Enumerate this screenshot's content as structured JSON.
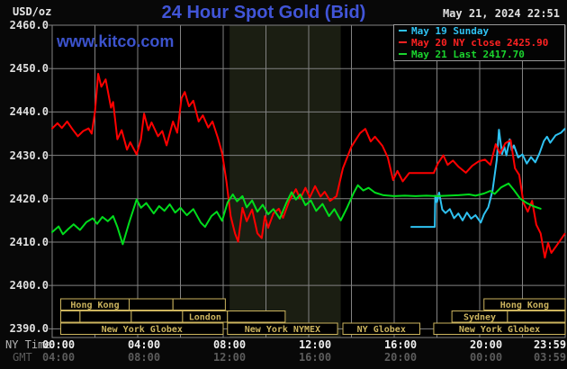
{
  "header": {
    "unit_label": "USD/oz",
    "title": "24 Hour Spot Gold (Bid)",
    "datetime": "May 21, 2024 22:51",
    "watermark": "www.kitco.com"
  },
  "legend": {
    "items": [
      {
        "label": "May 19 Sunday",
        "color": "#2fc2f2"
      },
      {
        "label": "May 20 NY close 2425.90",
        "color": "#ff2222"
      },
      {
        "label": "May 21 Last 2417.70",
        "color": "#1bd42e"
      }
    ]
  },
  "axes": {
    "y_ticks": [
      "2460.0",
      "2450.0",
      "2440.0",
      "2430.0",
      "2420.0",
      "2410.0",
      "2400.0",
      "2390.0"
    ],
    "ny_label": "NY Time",
    "gmt_label": "GMT",
    "ny_ticks": [
      "00:00",
      "04:00",
      "08:00",
      "12:00",
      "16:00",
      "20:00",
      "23:59"
    ],
    "gmt_ticks": [
      "04:00",
      "08:00",
      "12:00",
      "16:00",
      "20:00",
      "00:00",
      "03:59"
    ]
  },
  "sessions": {
    "rows": [
      [
        {
          "label": "Hong Kong",
          "start": 0.4,
          "end": 3.6
        },
        {
          "label": "",
          "start": 3.6,
          "end": 5.65
        },
        {
          "label": "",
          "start": 5.65,
          "end": 8.1
        },
        {
          "label": "Hong Kong",
          "start": 20.2,
          "end": 24.0
        }
      ],
      [
        {
          "label": "",
          "start": 0.4,
          "end": 1.3
        },
        {
          "label": "",
          "start": 1.3,
          "end": 3.7
        },
        {
          "label": "",
          "start": 3.7,
          "end": 6.1
        },
        {
          "label": "London",
          "start": 6.1,
          "end": 8.2
        },
        {
          "label": "",
          "start": 8.2,
          "end": 10.9
        },
        {
          "label": "Sydney",
          "start": 18.7,
          "end": 21.3
        },
        {
          "label": "",
          "start": 21.3,
          "end": 24.0
        }
      ],
      [
        {
          "label": "New York Globex",
          "start": 0.4,
          "end": 8.0
        },
        {
          "label": "New York NYMEX",
          "start": 8.2,
          "end": 13.35
        },
        {
          "label": "NY Globex",
          "start": 13.6,
          "end": 17.2
        },
        {
          "label": "New York Globex",
          "start": 17.85,
          "end": 24.0
        }
      ]
    ]
  },
  "chart_data": {
    "type": "line",
    "title": "24 Hour Spot Gold (Bid)",
    "xlabel": "NY Time (hours 0-24)",
    "ylabel": "USD/oz",
    "x_range": [
      0,
      24
    ],
    "y_range_drawn": [
      2388,
      2460
    ],
    "y_tick_values": [
      2460,
      2450,
      2440,
      2430,
      2420,
      2410,
      2400,
      2390
    ],
    "grid": true,
    "legend_position": "top-right",
    "ny_close_price": 2425.9,
    "last_price": 2417.7,
    "nymex_band_hours": [
      8.3,
      13.5
    ],
    "series": [
      {
        "name": "May 19 Sunday",
        "color": "#2fc2f2",
        "points": [
          [
            16.8,
            2413.5
          ],
          [
            17.9,
            2413.5
          ],
          [
            17.92,
            2420.7
          ],
          [
            18.0,
            2419.2
          ],
          [
            18.1,
            2421.4
          ],
          [
            18.25,
            2417.5
          ],
          [
            18.4,
            2416.7
          ],
          [
            18.6,
            2417.6
          ],
          [
            18.8,
            2415.5
          ],
          [
            19.0,
            2416.6
          ],
          [
            19.2,
            2415.0
          ],
          [
            19.4,
            2416.8
          ],
          [
            19.6,
            2415.4
          ],
          [
            19.8,
            2416.2
          ],
          [
            20.05,
            2414.5
          ],
          [
            20.2,
            2416.4
          ],
          [
            20.4,
            2418.0
          ],
          [
            20.6,
            2421.9
          ],
          [
            20.8,
            2429.0
          ],
          [
            20.9,
            2435.9
          ],
          [
            21.05,
            2430.3
          ],
          [
            21.15,
            2432.0
          ],
          [
            21.25,
            2430.0
          ],
          [
            21.4,
            2433.7
          ],
          [
            21.5,
            2431.2
          ],
          [
            21.6,
            2432.3
          ],
          [
            21.8,
            2429.5
          ],
          [
            22.0,
            2430.2
          ],
          [
            22.2,
            2428.1
          ],
          [
            22.4,
            2429.6
          ],
          [
            22.6,
            2428.4
          ],
          [
            22.8,
            2430.5
          ],
          [
            23.0,
            2433.3
          ],
          [
            23.15,
            2434.3
          ],
          [
            23.3,
            2432.9
          ],
          [
            23.55,
            2434.6
          ],
          [
            23.8,
            2435.2
          ],
          [
            23.98,
            2436.1
          ]
        ]
      },
      {
        "name": "May 20",
        "color": "#ff0000",
        "points": [
          [
            0,
            2436.2
          ],
          [
            0.25,
            2437.4
          ],
          [
            0.45,
            2436.3
          ],
          [
            0.7,
            2437.8
          ],
          [
            0.95,
            2436.0
          ],
          [
            1.2,
            2434.4
          ],
          [
            1.45,
            2435.6
          ],
          [
            1.7,
            2436.2
          ],
          [
            1.85,
            2435.0
          ],
          [
            2.0,
            2440.0
          ],
          [
            2.15,
            2448.8
          ],
          [
            2.3,
            2445.8
          ],
          [
            2.5,
            2447.5
          ],
          [
            2.75,
            2441.0
          ],
          [
            2.85,
            2442.3
          ],
          [
            3.05,
            2433.7
          ],
          [
            3.25,
            2435.8
          ],
          [
            3.5,
            2431.3
          ],
          [
            3.65,
            2433.0
          ],
          [
            3.95,
            2430.2
          ],
          [
            4.15,
            2433.7
          ],
          [
            4.3,
            2439.6
          ],
          [
            4.5,
            2435.8
          ],
          [
            4.65,
            2437.6
          ],
          [
            4.95,
            2434.4
          ],
          [
            5.15,
            2435.6
          ],
          [
            5.35,
            2432.3
          ],
          [
            5.65,
            2437.8
          ],
          [
            5.85,
            2435.2
          ],
          [
            6.05,
            2443.2
          ],
          [
            6.2,
            2444.6
          ],
          [
            6.4,
            2441.3
          ],
          [
            6.6,
            2442.6
          ],
          [
            6.85,
            2437.8
          ],
          [
            7.05,
            2439.2
          ],
          [
            7.3,
            2436.4
          ],
          [
            7.5,
            2437.8
          ],
          [
            7.75,
            2434.0
          ],
          [
            7.95,
            2430.5
          ],
          [
            8.15,
            2424.0
          ],
          [
            8.35,
            2416.0
          ],
          [
            8.55,
            2412.0
          ],
          [
            8.7,
            2410.1
          ],
          [
            8.9,
            2417.9
          ],
          [
            9.1,
            2414.8
          ],
          [
            9.35,
            2417.5
          ],
          [
            9.6,
            2412.0
          ],
          [
            9.8,
            2410.9
          ],
          [
            9.95,
            2416.0
          ],
          [
            10.1,
            2413.3
          ],
          [
            10.35,
            2416.6
          ],
          [
            10.6,
            2417.7
          ],
          [
            10.8,
            2415.6
          ],
          [
            11.1,
            2419.6
          ],
          [
            11.4,
            2422.2
          ],
          [
            11.6,
            2420.0
          ],
          [
            11.85,
            2422.5
          ],
          [
            12.05,
            2420.3
          ],
          [
            12.3,
            2422.9
          ],
          [
            12.55,
            2420.5
          ],
          [
            12.75,
            2421.6
          ],
          [
            13.0,
            2419.5
          ],
          [
            13.3,
            2420.6
          ],
          [
            13.6,
            2427.0
          ],
          [
            14.0,
            2432.0
          ],
          [
            14.4,
            2435.1
          ],
          [
            14.65,
            2436.1
          ],
          [
            14.9,
            2433.2
          ],
          [
            15.1,
            2434.3
          ],
          [
            15.45,
            2432.2
          ],
          [
            15.7,
            2429.5
          ],
          [
            15.95,
            2424.3
          ],
          [
            16.15,
            2426.4
          ],
          [
            16.4,
            2424.0
          ],
          [
            16.7,
            2425.9
          ],
          [
            17.85,
            2425.9
          ],
          [
            18.05,
            2428.2
          ],
          [
            18.3,
            2430.0
          ],
          [
            18.5,
            2427.8
          ],
          [
            18.75,
            2428.8
          ],
          [
            19.0,
            2427.4
          ],
          [
            19.35,
            2426.0
          ],
          [
            19.65,
            2427.6
          ],
          [
            19.95,
            2428.6
          ],
          [
            20.25,
            2429.0
          ],
          [
            20.5,
            2427.8
          ],
          [
            20.75,
            2432.6
          ],
          [
            20.95,
            2430.4
          ],
          [
            21.2,
            2432.8
          ],
          [
            21.45,
            2433.5
          ],
          [
            21.65,
            2427.0
          ],
          [
            21.85,
            2425.5
          ],
          [
            22.05,
            2419.0
          ],
          [
            22.25,
            2417.0
          ],
          [
            22.45,
            2419.5
          ],
          [
            22.65,
            2414.0
          ],
          [
            22.85,
            2412.0
          ],
          [
            23.05,
            2406.4
          ],
          [
            23.2,
            2409.8
          ],
          [
            23.35,
            2407.5
          ],
          [
            23.6,
            2409.2
          ],
          [
            23.98,
            2411.9
          ]
        ]
      },
      {
        "name": "May 21",
        "color": "#00dd1c",
        "points": [
          [
            0,
            2412.3
          ],
          [
            0.3,
            2413.6
          ],
          [
            0.5,
            2411.8
          ],
          [
            0.75,
            2413.0
          ],
          [
            1.0,
            2414.1
          ],
          [
            1.3,
            2412.8
          ],
          [
            1.6,
            2414.6
          ],
          [
            1.9,
            2415.5
          ],
          [
            2.1,
            2414.2
          ],
          [
            2.35,
            2415.8
          ],
          [
            2.6,
            2414.8
          ],
          [
            2.85,
            2416.0
          ],
          [
            3.05,
            2413.5
          ],
          [
            3.3,
            2409.5
          ],
          [
            3.6,
            2414.5
          ],
          [
            3.95,
            2419.8
          ],
          [
            4.15,
            2417.9
          ],
          [
            4.4,
            2419.0
          ],
          [
            4.75,
            2416.6
          ],
          [
            5.0,
            2418.3
          ],
          [
            5.25,
            2417.2
          ],
          [
            5.5,
            2418.7
          ],
          [
            5.75,
            2416.8
          ],
          [
            6.0,
            2417.9
          ],
          [
            6.3,
            2416.2
          ],
          [
            6.6,
            2417.6
          ],
          [
            6.95,
            2414.5
          ],
          [
            7.15,
            2413.5
          ],
          [
            7.45,
            2416.0
          ],
          [
            7.7,
            2417.0
          ],
          [
            7.95,
            2414.9
          ],
          [
            8.2,
            2419.1
          ],
          [
            8.45,
            2421.0
          ],
          [
            8.65,
            2419.4
          ],
          [
            8.9,
            2420.6
          ],
          [
            9.1,
            2418.0
          ],
          [
            9.35,
            2419.6
          ],
          [
            9.6,
            2417.0
          ],
          [
            9.85,
            2418.6
          ],
          [
            10.1,
            2416.4
          ],
          [
            10.35,
            2417.6
          ],
          [
            10.65,
            2415.4
          ],
          [
            10.95,
            2419.0
          ],
          [
            11.2,
            2421.5
          ],
          [
            11.4,
            2419.8
          ],
          [
            11.6,
            2421.0
          ],
          [
            11.85,
            2418.5
          ],
          [
            12.1,
            2419.6
          ],
          [
            12.35,
            2417.2
          ],
          [
            12.65,
            2418.8
          ],
          [
            12.95,
            2416.0
          ],
          [
            13.2,
            2417.6
          ],
          [
            13.5,
            2415.0
          ],
          [
            13.8,
            2418.0
          ],
          [
            14.1,
            2421.3
          ],
          [
            14.3,
            2423.1
          ],
          [
            14.55,
            2421.9
          ],
          [
            14.8,
            2422.5
          ],
          [
            15.1,
            2421.4
          ],
          [
            15.5,
            2420.8
          ],
          [
            16.0,
            2420.6
          ],
          [
            16.5,
            2420.7
          ],
          [
            17.0,
            2420.6
          ],
          [
            17.5,
            2420.7
          ],
          [
            18.0,
            2420.6
          ],
          [
            18.5,
            2420.7
          ],
          [
            19.0,
            2420.8
          ],
          [
            19.5,
            2421.0
          ],
          [
            19.8,
            2420.7
          ],
          [
            20.2,
            2421.2
          ],
          [
            20.5,
            2421.8
          ],
          [
            20.7,
            2421.1
          ],
          [
            21.0,
            2422.6
          ],
          [
            21.35,
            2423.5
          ],
          [
            21.6,
            2422.0
          ],
          [
            21.9,
            2420.0
          ],
          [
            22.2,
            2419.0
          ],
          [
            22.5,
            2418.3
          ],
          [
            22.85,
            2417.7
          ]
        ]
      }
    ]
  },
  "colors": {
    "background": "#080808",
    "plot_background": "#000000",
    "nymex_band": "#1b1e12",
    "grid": "#828282",
    "session_khaki": "#ccb45e",
    "title_blue": "#4155d8",
    "watermark_blue": "#3c53cd",
    "text_white": "#e0e0e0",
    "gmt_gray": "#5c5c5c"
  }
}
